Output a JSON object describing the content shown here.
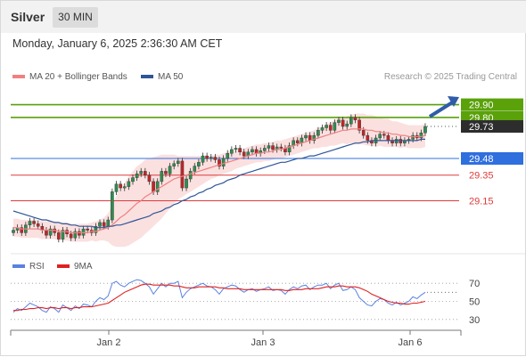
{
  "header": {
    "asset": "Silver",
    "timeframe": "30 MIN"
  },
  "datetime": "Monday, January 6, 2025 2:36:30 AM CET",
  "legend": {
    "ma20_label": "MA 20 + Bollinger Bands",
    "ma50_label": "MA 50"
  },
  "copyright": "Research © 2025 Trading Central",
  "rsi_legend": {
    "rsi_label": "RSI",
    "ma_label": "9MA"
  },
  "colors": {
    "resistance": "#5aa10a",
    "current": "#2d2d2d",
    "pivot": "#2f6fde",
    "support": "#e03b3b",
    "candle_up": "#2f8d4e",
    "candle_down": "#c02626",
    "ma20": "#f08080",
    "ma50": "#2f5597",
    "band": "#fbe0e0",
    "rsi": "#5a82e0",
    "rsi_ma": "#e02020"
  },
  "chart_data": [
    {
      "type": "candlestick",
      "x_ticks": [
        "Jan 2",
        "Jan 3",
        "Jan 6"
      ],
      "ylim": [
        28.75,
        30.05
      ],
      "levels": [
        {
          "kind": "resistance",
          "value": 29.9,
          "label": "29.90"
        },
        {
          "kind": "resistance",
          "value": 29.8,
          "label": "29.80"
        },
        {
          "kind": "current",
          "value": 29.73,
          "label": "29.73"
        },
        {
          "kind": "pivot",
          "value": 29.48,
          "label": "29.48"
        },
        {
          "kind": "support",
          "value": 29.35,
          "label": "29.35"
        },
        {
          "kind": "support",
          "value": 29.15,
          "label": "29.15"
        }
      ],
      "close": [
        28.92,
        28.94,
        28.9,
        28.96,
        28.99,
        28.97,
        28.95,
        28.92,
        28.88,
        28.93,
        28.9,
        28.85,
        28.92,
        28.89,
        28.86,
        28.91,
        28.88,
        28.93,
        28.92,
        28.9,
        28.95,
        28.98,
        28.95,
        29.0,
        29.22,
        29.28,
        29.25,
        29.26,
        29.3,
        29.33,
        29.36,
        29.38,
        29.35,
        29.3,
        29.22,
        29.3,
        29.38,
        29.36,
        29.42,
        29.44,
        29.46,
        29.25,
        29.32,
        29.38,
        29.42,
        29.45,
        29.5,
        29.48,
        29.49,
        29.47,
        29.42,
        29.48,
        29.52,
        29.55,
        29.56,
        29.53,
        29.5,
        29.53,
        29.55,
        29.52,
        29.54,
        29.56,
        29.58,
        29.55,
        29.57,
        29.56,
        29.53,
        29.58,
        29.62,
        29.6,
        29.64,
        29.66,
        29.62,
        29.66,
        29.7,
        29.72,
        29.74,
        29.7,
        29.76,
        29.78,
        29.73,
        29.75,
        29.8,
        29.78,
        29.7,
        29.66,
        29.62,
        29.6,
        29.64,
        29.67,
        29.66,
        29.62,
        29.6,
        29.63,
        29.6,
        29.62,
        29.63,
        29.66,
        29.64,
        29.68,
        29.73
      ],
      "ma20": [
        28.94,
        28.94,
        28.93,
        28.93,
        28.93,
        28.93,
        28.93,
        28.92,
        28.92,
        28.92,
        28.92,
        28.91,
        28.91,
        28.91,
        28.9,
        28.9,
        28.9,
        28.9,
        28.9,
        28.91,
        28.91,
        28.92,
        28.93,
        28.94,
        28.96,
        28.99,
        29.02,
        29.04,
        29.07,
        29.1,
        29.13,
        29.15,
        29.18,
        29.2,
        29.22,
        29.24,
        29.26,
        29.28,
        29.3,
        29.32,
        29.33,
        29.34,
        29.35,
        29.36,
        29.37,
        29.38,
        29.39,
        29.4,
        29.41,
        29.42,
        29.43,
        29.44,
        29.45,
        29.46,
        29.47,
        29.48,
        29.49,
        29.5,
        29.51,
        29.52,
        29.52,
        29.53,
        29.53,
        29.54,
        29.55,
        29.55,
        29.56,
        29.57,
        29.58,
        29.59,
        29.6,
        29.61,
        29.62,
        29.63,
        29.64,
        29.65,
        29.66,
        29.67,
        29.68,
        29.69,
        29.7,
        29.7,
        29.71,
        29.71,
        29.71,
        29.71,
        29.7,
        29.7,
        29.69,
        29.69,
        29.68,
        29.68,
        29.67,
        29.67,
        29.66,
        29.66,
        29.65,
        29.65,
        29.65,
        29.65,
        29.66
      ],
      "ma50": [
        29.07,
        29.06,
        29.05,
        29.04,
        29.03,
        29.02,
        29.01,
        29.0,
        29.0,
        28.99,
        28.98,
        28.98,
        28.97,
        28.97,
        28.96,
        28.96,
        28.95,
        28.95,
        28.95,
        28.95,
        28.94,
        28.94,
        28.94,
        28.95,
        28.95,
        28.96,
        28.96,
        28.97,
        28.98,
        28.99,
        29.0,
        29.01,
        29.02,
        29.03,
        29.05,
        29.06,
        29.07,
        29.09,
        29.1,
        29.12,
        29.13,
        29.15,
        29.16,
        29.18,
        29.19,
        29.21,
        29.22,
        29.24,
        29.25,
        29.27,
        29.28,
        29.29,
        29.31,
        29.32,
        29.33,
        29.35,
        29.36,
        29.37,
        29.38,
        29.39,
        29.4,
        29.41,
        29.42,
        29.43,
        29.44,
        29.45,
        29.45,
        29.46,
        29.47,
        29.48,
        29.48,
        29.49,
        29.5,
        29.5,
        29.51,
        29.52,
        29.53,
        29.54,
        29.55,
        29.56,
        29.57,
        29.58,
        29.59,
        29.6,
        29.6,
        29.61,
        29.61,
        29.62,
        29.62,
        29.62,
        29.62,
        29.62,
        29.62,
        29.62,
        29.62,
        29.62,
        29.62,
        29.62,
        29.62,
        29.63,
        29.63
      ],
      "band_halfwidth": [
        0.07,
        0.07,
        0.07,
        0.07,
        0.07,
        0.07,
        0.07,
        0.07,
        0.07,
        0.07,
        0.07,
        0.07,
        0.07,
        0.07,
        0.07,
        0.07,
        0.07,
        0.07,
        0.07,
        0.07,
        0.08,
        0.08,
        0.09,
        0.11,
        0.16,
        0.2,
        0.23,
        0.25,
        0.27,
        0.28,
        0.29,
        0.29,
        0.29,
        0.28,
        0.27,
        0.26,
        0.25,
        0.23,
        0.21,
        0.19,
        0.17,
        0.16,
        0.15,
        0.14,
        0.13,
        0.12,
        0.11,
        0.1,
        0.09,
        0.09,
        0.08,
        0.08,
        0.08,
        0.08,
        0.07,
        0.07,
        0.07,
        0.07,
        0.07,
        0.07,
        0.07,
        0.07,
        0.07,
        0.07,
        0.07,
        0.07,
        0.07,
        0.07,
        0.07,
        0.07,
        0.07,
        0.07,
        0.07,
        0.07,
        0.08,
        0.08,
        0.09,
        0.09,
        0.1,
        0.1,
        0.1,
        0.11,
        0.11,
        0.12,
        0.12,
        0.12,
        0.12,
        0.12,
        0.12,
        0.11,
        0.11,
        0.11,
        0.1,
        0.1,
        0.1,
        0.09,
        0.09,
        0.09,
        0.09,
        0.09,
        0.09
      ]
    },
    {
      "type": "line",
      "name": "RSI",
      "y_ticks": [
        70,
        50,
        30
      ],
      "ylim": [
        20,
        80
      ],
      "rsi": [
        38,
        42,
        40,
        44,
        48,
        46,
        44,
        40,
        38,
        44,
        42,
        38,
        46,
        43,
        40,
        45,
        42,
        47,
        46,
        44,
        50,
        54,
        52,
        56,
        70,
        72,
        68,
        66,
        70,
        72,
        74,
        73,
        70,
        66,
        58,
        64,
        70,
        66,
        70,
        70,
        72,
        54,
        60,
        64,
        66,
        68,
        70,
        67,
        66,
        63,
        58,
        64,
        66,
        68,
        67,
        63,
        60,
        63,
        64,
        61,
        63,
        64,
        66,
        62,
        63,
        62,
        58,
        63,
        66,
        64,
        67,
        68,
        63,
        66,
        68,
        68,
        70,
        64,
        68,
        70,
        62,
        63,
        66,
        63,
        54,
        50,
        46,
        45,
        50,
        53,
        52,
        48,
        46,
        49,
        46,
        48,
        50,
        55,
        53,
        57,
        60
      ],
      "ma9": [
        40,
        40,
        41,
        41,
        42,
        42,
        43,
        43,
        42,
        43,
        43,
        42,
        43,
        43,
        42,
        43,
        43,
        44,
        44,
        44,
        45,
        46,
        47,
        48,
        51,
        54,
        57,
        60,
        62,
        64,
        66,
        68,
        69,
        69,
        68,
        68,
        68,
        68,
        68,
        67,
        67,
        66,
        65,
        65,
        65,
        66,
        66,
        66,
        66,
        66,
        65,
        65,
        64,
        64,
        64,
        64,
        63,
        63,
        63,
        63,
        63,
        63,
        63,
        63,
        63,
        63,
        62,
        62,
        63,
        63,
        63,
        64,
        64,
        64,
        64,
        65,
        66,
        66,
        66,
        67,
        67,
        66,
        66,
        66,
        65,
        63,
        61,
        58,
        56,
        54,
        52,
        50,
        49,
        48,
        48,
        47,
        47,
        48,
        48,
        49,
        50
      ]
    }
  ]
}
